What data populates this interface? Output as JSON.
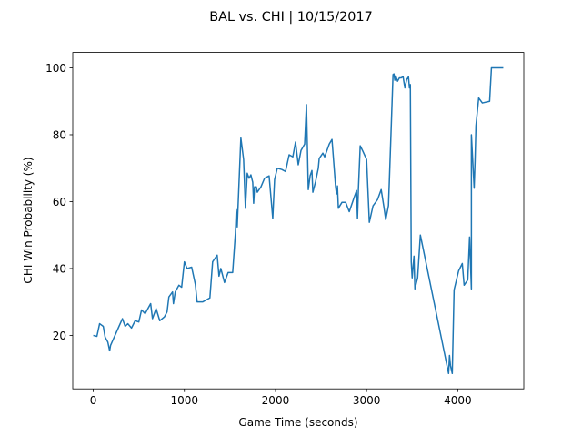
{
  "chart_data": {
    "type": "line",
    "title": "BAL vs. CHI | 10/15/2017",
    "x_label": "Game Time (seconds)",
    "y_label": "CHI Win Probability (%)",
    "color": "#1f77b4",
    "grid": false,
    "xlim": [
      -225,
      4725
    ],
    "xticks": [
      0,
      1000,
      2000,
      3000,
      4000
    ],
    "ylim": [
      4.0,
      104.6
    ],
    "yticks": [
      20,
      40,
      60,
      80,
      100
    ],
    "x": [
      0,
      40,
      70,
      110,
      130,
      160,
      180,
      190,
      320,
      350,
      380,
      420,
      460,
      500,
      530,
      570,
      630,
      650,
      690,
      730,
      780,
      810,
      830,
      870,
      880,
      900,
      940,
      970,
      1000,
      1030,
      1080,
      1120,
      1140,
      1200,
      1280,
      1310,
      1360,
      1380,
      1400,
      1440,
      1480,
      1530,
      1560,
      1570,
      1580,
      1620,
      1650,
      1670,
      1690,
      1710,
      1730,
      1750,
      1760,
      1770,
      1790,
      1800,
      1840,
      1880,
      1930,
      1970,
      1990,
      2020,
      2070,
      2110,
      2150,
      2190,
      2220,
      2250,
      2280,
      2320,
      2340,
      2360,
      2380,
      2400,
      2410,
      2440,
      2470,
      2480,
      2520,
      2540,
      2590,
      2620,
      2660,
      2670,
      2680,
      2690,
      2730,
      2770,
      2810,
      2860,
      2890,
      2900,
      2910,
      2930,
      2960,
      3000,
      3030,
      3070,
      3120,
      3160,
      3190,
      3210,
      3240,
      3250,
      3290,
      3300,
      3310,
      3320,
      3340,
      3360,
      3380,
      3400,
      3420,
      3440,
      3460,
      3470,
      3480,
      3490,
      3500,
      3520,
      3530,
      3560,
      3590,
      3900,
      3910,
      3920,
      3940,
      3960,
      4010,
      4050,
      4070,
      4110,
      4130,
      4150,
      4150,
      4180,
      4190,
      4200,
      4230,
      4270,
      4350,
      4370,
      4500
    ],
    "values": [
      20,
      19.7,
      23.5,
      22.7,
      19.5,
      18,
      15.4,
      17,
      25,
      22.7,
      23.5,
      22.2,
      24.4,
      24,
      27.6,
      26.5,
      29.5,
      25,
      28,
      24.4,
      25.5,
      27,
      31.5,
      33,
      29.5,
      33,
      35,
      34.4,
      42,
      40,
      40.4,
      35.3,
      30,
      30,
      31.2,
      42,
      44,
      37.7,
      40,
      35.8,
      38.8,
      38.8,
      50.5,
      57.6,
      52.4,
      79,
      72.6,
      58,
      68.5,
      67,
      68,
      65.8,
      59.5,
      64.4,
      64.4,
      62.8,
      64.4,
      67,
      67.7,
      55,
      66.6,
      70,
      69.6,
      69,
      74,
      73.4,
      77.8,
      71,
      75.3,
      77.2,
      89,
      63.6,
      67.7,
      69.3,
      62.8,
      66,
      70,
      72.9,
      74.5,
      73.4,
      77.2,
      78.6,
      64.4,
      62.3,
      64.7,
      58,
      59.8,
      59.8,
      57,
      61,
      63.3,
      55,
      63.6,
      76.7,
      75,
      72.6,
      53.8,
      58.7,
      60.6,
      63.6,
      58.4,
      54.6,
      58.8,
      66.3,
      98,
      98.2,
      96.3,
      97.6,
      96,
      97,
      97,
      97.4,
      94,
      96.5,
      97.3,
      94,
      95,
      42,
      37.2,
      43.7,
      33.9,
      37.2,
      50,
      8.6,
      14,
      11,
      8.6,
      33.6,
      39.3,
      41.5,
      35,
      36.6,
      49.4,
      33.9,
      80,
      64,
      72,
      82.7,
      91,
      89.5,
      90,
      100,
      100
    ]
  }
}
